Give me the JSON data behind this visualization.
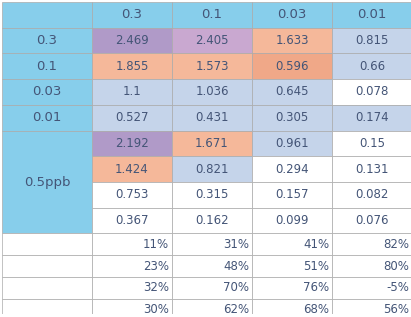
{
  "header_row": [
    "",
    "0.3",
    "0.1",
    "0.03",
    "0.01"
  ],
  "row_labels": [
    "0.3",
    "0.1",
    "0.03",
    "0.01",
    "0.5ppb"
  ],
  "main_data": [
    [
      "2.469",
      "2.405",
      "1.633",
      "0.815"
    ],
    [
      "1.855",
      "1.573",
      "0.596",
      "0.66"
    ],
    [
      "1.1",
      "1.036",
      "0.645",
      "0.078"
    ],
    [
      "0.527",
      "0.431",
      "0.305",
      "0.174"
    ],
    [
      "2.192",
      "1.671",
      "0.961",
      "0.15"
    ],
    [
      "1.424",
      "0.821",
      "0.294",
      "0.131"
    ],
    [
      "0.753",
      "0.315",
      "0.157",
      "0.082"
    ],
    [
      "0.367",
      "0.162",
      "0.099",
      "0.076"
    ]
  ],
  "percent_data": [
    [
      "11%",
      "31%",
      "41%",
      "82%"
    ],
    [
      "23%",
      "48%",
      "51%",
      "80%"
    ],
    [
      "32%",
      "70%",
      "76%",
      "-5%"
    ],
    [
      "30%",
      "62%",
      "68%",
      "56%"
    ]
  ],
  "cell_colors": [
    [
      "#b09ac8",
      "#c9a8d0",
      "#f5b89a",
      "#c5d4ea"
    ],
    [
      "#f5b89a",
      "#f5b89a",
      "#f0a888",
      "#c5d4ea"
    ],
    [
      "#c5d4ea",
      "#c5d4ea",
      "#c5d4ea",
      "#ffffff"
    ],
    [
      "#c5d4ea",
      "#c5d4ea",
      "#c5d4ea",
      "#c5d4ea"
    ],
    [
      "#b09ac8",
      "#f5b89a",
      "#c5d4ea",
      "#ffffff"
    ],
    [
      "#f5b89a",
      "#c5d4ea",
      "#ffffff",
      "#ffffff"
    ],
    [
      "#ffffff",
      "#ffffff",
      "#ffffff",
      "#ffffff"
    ],
    [
      "#ffffff",
      "#ffffff",
      "#ffffff",
      "#ffffff"
    ]
  ],
  "header_bg": "#87CEEB",
  "label_bg": "#87CEEB",
  "merged_label_bg": "#87CEEB",
  "percent_bg": "#ffffff",
  "border_color": "#aaaaaa",
  "text_color": "#555577",
  "font_size": 8.5
}
